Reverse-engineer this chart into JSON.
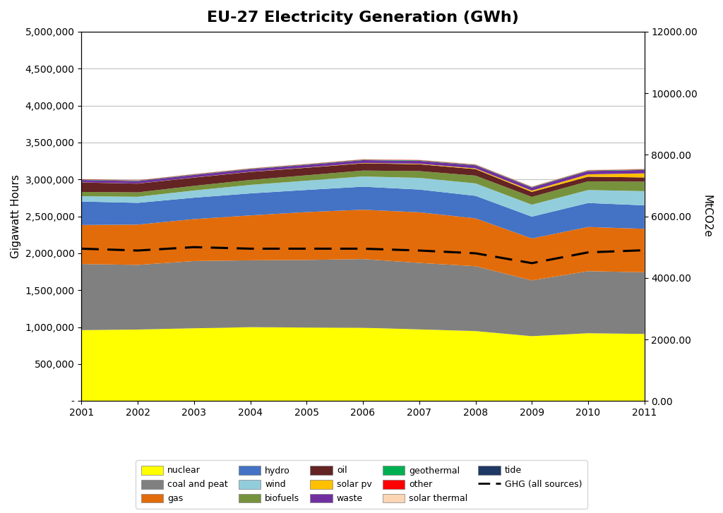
{
  "title": "EU-27 Electricity Generation (GWh)",
  "years": [
    2001,
    2002,
    2003,
    2004,
    2005,
    2006,
    2007,
    2008,
    2009,
    2010,
    2011
  ],
  "ylabel_left": "Gigawatt Hours",
  "ylabel_right": "MtCO2e",
  "ylim_left": [
    0,
    5000000
  ],
  "ylim_right": [
    0,
    12000
  ],
  "yticks_left": [
    0,
    500000,
    1000000,
    1500000,
    2000000,
    2500000,
    3000000,
    3500000,
    4000000,
    4500000,
    5000000
  ],
  "ytick_labels_left": [
    "-",
    "500,000",
    "1,000,000",
    "1,500,000",
    "2,000,000",
    "2,500,000",
    "3,000,000",
    "3,500,000",
    "4,000,000",
    "4,500,000",
    "5,000,000"
  ],
  "yticks_right": [
    0,
    2000,
    4000,
    6000,
    8000,
    10000,
    12000
  ],
  "ytick_labels_right": [
    "0.00",
    "2000.00",
    "4000.00",
    "6000.00",
    "8000.00",
    "10000.00",
    "12000.00"
  ],
  "stacks": [
    {
      "label": "nuclear",
      "color": "#FFFF00",
      "values": [
        960000,
        968000,
        985000,
        1000000,
        995000,
        992000,
        970000,
        947000,
        878000,
        918000,
        908000
      ]
    },
    {
      "label": "coal and peat",
      "color": "#808080",
      "values": [
        895000,
        875000,
        910000,
        905000,
        915000,
        930000,
        900000,
        878000,
        755000,
        840000,
        835000
      ]
    },
    {
      "label": "gas",
      "color": "#E36C0A",
      "values": [
        528000,
        545000,
        568000,
        608000,
        648000,
        668000,
        685000,
        648000,
        568000,
        598000,
        588000
      ]
    },
    {
      "label": "hydro",
      "color": "#4472C4",
      "values": [
        318000,
        295000,
        290000,
        298000,
        300000,
        312000,
        308000,
        305000,
        295000,
        325000,
        318000
      ]
    },
    {
      "label": "wind",
      "color": "#92CDDC",
      "values": [
        72000,
        82000,
        97000,
        115000,
        125000,
        138000,
        158000,
        168000,
        162000,
        175000,
        192000
      ]
    },
    {
      "label": "biofuels",
      "color": "#76923C",
      "values": [
        58000,
        60000,
        63000,
        67000,
        73000,
        80000,
        92000,
        105000,
        105000,
        118000,
        128000
      ]
    },
    {
      "label": "oil",
      "color": "#632423",
      "values": [
        128000,
        118000,
        112000,
        108000,
        102000,
        98000,
        92000,
        88000,
        68000,
        63000,
        58000
      ]
    },
    {
      "label": "solar pv",
      "color": "#FFC000",
      "values": [
        1200,
        1400,
        1800,
        2200,
        3200,
        4500,
        7000,
        10000,
        17000,
        32000,
        55000
      ]
    },
    {
      "label": "waste",
      "color": "#7030A0",
      "values": [
        32000,
        33000,
        34000,
        35000,
        36000,
        38000,
        40000,
        42000,
        42000,
        44000,
        46000
      ]
    },
    {
      "label": "geothermal",
      "color": "#00B050",
      "values": [
        5500,
        5600,
        5700,
        5800,
        5900,
        6000,
        6100,
        6200,
        6300,
        6400,
        6500
      ]
    },
    {
      "label": "other",
      "color": "#FF0000",
      "values": [
        4500,
        4500,
        4500,
        4500,
        4500,
        4500,
        4500,
        4500,
        4500,
        4500,
        4500
      ]
    },
    {
      "label": "solar thermal",
      "color": "#FCD5B4",
      "values": [
        600,
        700,
        850,
        1000,
        1300,
        1600,
        2000,
        2800,
        3500,
        4500,
        5500
      ]
    },
    {
      "label": "tide",
      "color": "#1F3864",
      "values": [
        500,
        500,
        500,
        500,
        500,
        500,
        500,
        500,
        500,
        500,
        500
      ]
    }
  ],
  "ghg": {
    "label": "GHG (all sources)",
    "values": [
      4950,
      4890,
      5000,
      4950,
      4950,
      4950,
      4890,
      4800,
      4480,
      4830,
      4900
    ]
  },
  "background_color": "#FFFFFF",
  "plot_background": "#FFFFFF",
  "grid_color": "#C0C0C0",
  "legend_order": [
    "nuclear",
    "coal and peat",
    "gas",
    "hydro",
    "wind",
    "biofuels",
    "oil",
    "solar pv",
    "waste",
    "geothermal",
    "other",
    "solar thermal",
    "tide",
    "GHG (all sources)"
  ]
}
